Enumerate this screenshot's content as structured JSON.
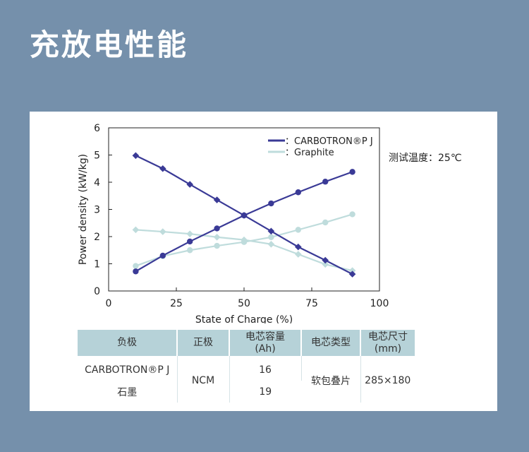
{
  "title": "充放电性能",
  "note": "测试温度：25℃",
  "chart_data": {
    "type": "line",
    "xlabel": "State of Charge (%)",
    "ylabel": "Power density (kW/kg)",
    "xlim": [
      0,
      100
    ],
    "ylim": [
      0,
      6
    ],
    "x_ticks": [
      "0",
      "25",
      "50",
      "75",
      "100"
    ],
    "y_ticks": [
      "0",
      "1",
      "2",
      "3",
      "4",
      "5",
      "6"
    ],
    "x": [
      10,
      20,
      30,
      40,
      50,
      60,
      70,
      80,
      90
    ],
    "legend_position": "top-right",
    "series": [
      {
        "name": "CARBOTRON®P J",
        "legend_label": "：CARBOTRON®P J",
        "curve": "charge",
        "color": "#3a3a96",
        "marker": "circle",
        "values": [
          0.72,
          1.3,
          1.82,
          2.3,
          2.78,
          3.22,
          3.63,
          4.02,
          4.38
        ]
      },
      {
        "name": "CARBOTRON®P J",
        "curve": "discharge",
        "color": "#3a3a96",
        "marker": "diamond",
        "values": [
          4.98,
          4.5,
          3.92,
          3.35,
          2.78,
          2.2,
          1.62,
          1.13,
          0.62
        ]
      },
      {
        "name": "Graphite",
        "legend_label": "：Graphite",
        "curve": "charge",
        "color": "#bfdcdc",
        "marker": "circle",
        "values": [
          0.92,
          1.28,
          1.5,
          1.66,
          1.8,
          1.98,
          2.25,
          2.52,
          2.82
        ]
      },
      {
        "name": "Graphite",
        "curve": "discharge",
        "color": "#bfdcdc",
        "marker": "diamond",
        "values": [
          2.25,
          2.18,
          2.1,
          1.98,
          1.88,
          1.72,
          1.35,
          0.98,
          0.75
        ]
      }
    ]
  },
  "table": {
    "headers": [
      "负极",
      "正极",
      "电芯容量\n(Ah)",
      "电芯类型",
      "电芯尺寸\n(mm)"
    ],
    "rows": [
      {
        "anode": "CARBOTRON®P J",
        "cathode": "NCM",
        "capacity": "16",
        "cell_type": "软包叠片",
        "size": "285×180"
      },
      {
        "anode": "石墨",
        "capacity": "19"
      }
    ]
  }
}
